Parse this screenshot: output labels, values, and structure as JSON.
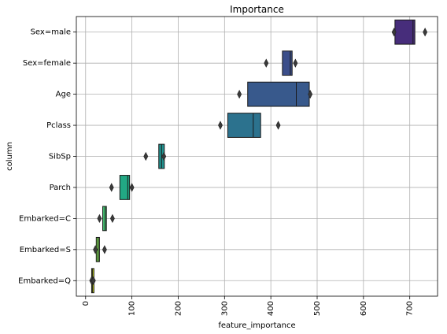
{
  "chart_data": {
    "type": "boxen",
    "title": "Importance",
    "xlabel": "feature_importance",
    "ylabel": "column",
    "xlim": [
      -20,
      760
    ],
    "xticks": [
      0,
      100,
      200,
      300,
      400,
      500,
      600,
      700
    ],
    "grid": true,
    "categories": [
      "Sex=male",
      "Sex=female",
      "Age",
      "Pclass",
      "SibSp",
      "Parch",
      "Embarked=C",
      "Embarked=S",
      "Embarked=Q"
    ],
    "series": [
      {
        "category": "Sex=male",
        "color": "#472d7b",
        "box": [
          668,
          711
        ],
        "median": 707,
        "outliers": [
          666,
          733
        ]
      },
      {
        "category": "Sex=female",
        "color": "#3b4e8a",
        "box": [
          425,
          446
        ],
        "median": 442,
        "outliers": [
          390,
          453
        ]
      },
      {
        "category": "Age",
        "color": "#38598c",
        "box": [
          350,
          483
        ],
        "median": 455,
        "outliers": [
          332,
          485
        ]
      },
      {
        "category": "Pclass",
        "color": "#2c728e",
        "box": [
          307,
          378
        ],
        "median": 362,
        "outliers": [
          291,
          416
        ]
      },
      {
        "category": "SibSp",
        "color": "#21908d",
        "box": [
          158,
          170
        ],
        "median": 164,
        "outliers": [
          130,
          169
        ]
      },
      {
        "category": "Parch",
        "color": "#22a884",
        "box": [
          74,
          95
        ],
        "median": 91,
        "outliers": [
          56,
          100
        ]
      },
      {
        "category": "Embarked=C",
        "color": "#44bf70",
        "box": [
          37,
          45
        ],
        "median": 42,
        "outliers": [
          30,
          58
        ]
      },
      {
        "category": "Embarked=S",
        "color": "#7ad151",
        "box": [
          23,
          30
        ],
        "median": 27,
        "outliers": [
          21,
          41
        ]
      },
      {
        "category": "Embarked=Q",
        "color": "#d2e21b",
        "box": [
          13,
          18
        ],
        "median": 15,
        "outliers": [
          13,
          17
        ]
      }
    ]
  },
  "colors": {
    "grid": "#b0b0b0",
    "edge": "#1a1a1a",
    "spine": "#000000"
  }
}
